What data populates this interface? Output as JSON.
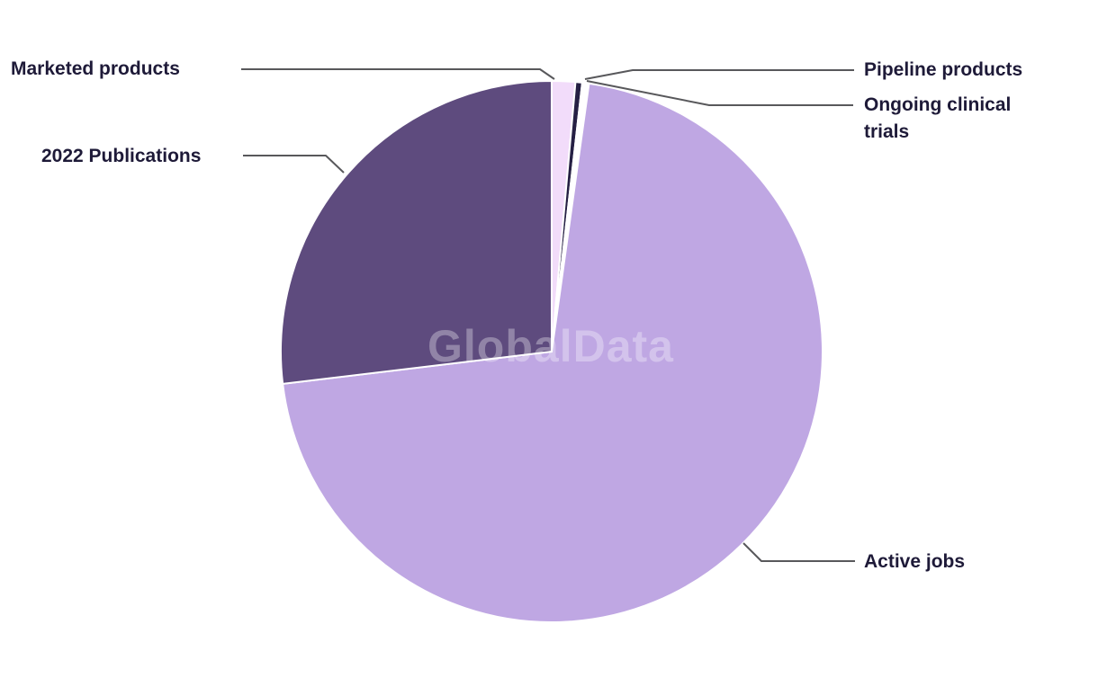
{
  "watermark": {
    "text": "GlobalData",
    "color": "#ffffff",
    "opacity": 0.32
  },
  "leader_line_color": "#58585b",
  "label_text_color": "#1e1a38",
  "background_color": "#ffffff",
  "chart_data": {
    "type": "pie",
    "title": "",
    "legend_position": "callout-labels",
    "direction": "clockwise",
    "start_angle_deg": 0,
    "values_are": "percent share estimated from arc angles (no numeric labels shown in image)",
    "slices": [
      {
        "label": "Marketed products",
        "value": 1.4,
        "color": "#f2dcfa"
      },
      {
        "label": "Pipeline products",
        "value": 0.4,
        "color": "#262044"
      },
      {
        "label": "Ongoing clinical trials",
        "value": 0.4,
        "color": "#ffffff"
      },
      {
        "label": "Active jobs",
        "value": 70.9,
        "color": "#bfa7e3"
      },
      {
        "label": "2022 Publications",
        "value": 26.9,
        "color": "#5e4b7e"
      }
    ]
  }
}
